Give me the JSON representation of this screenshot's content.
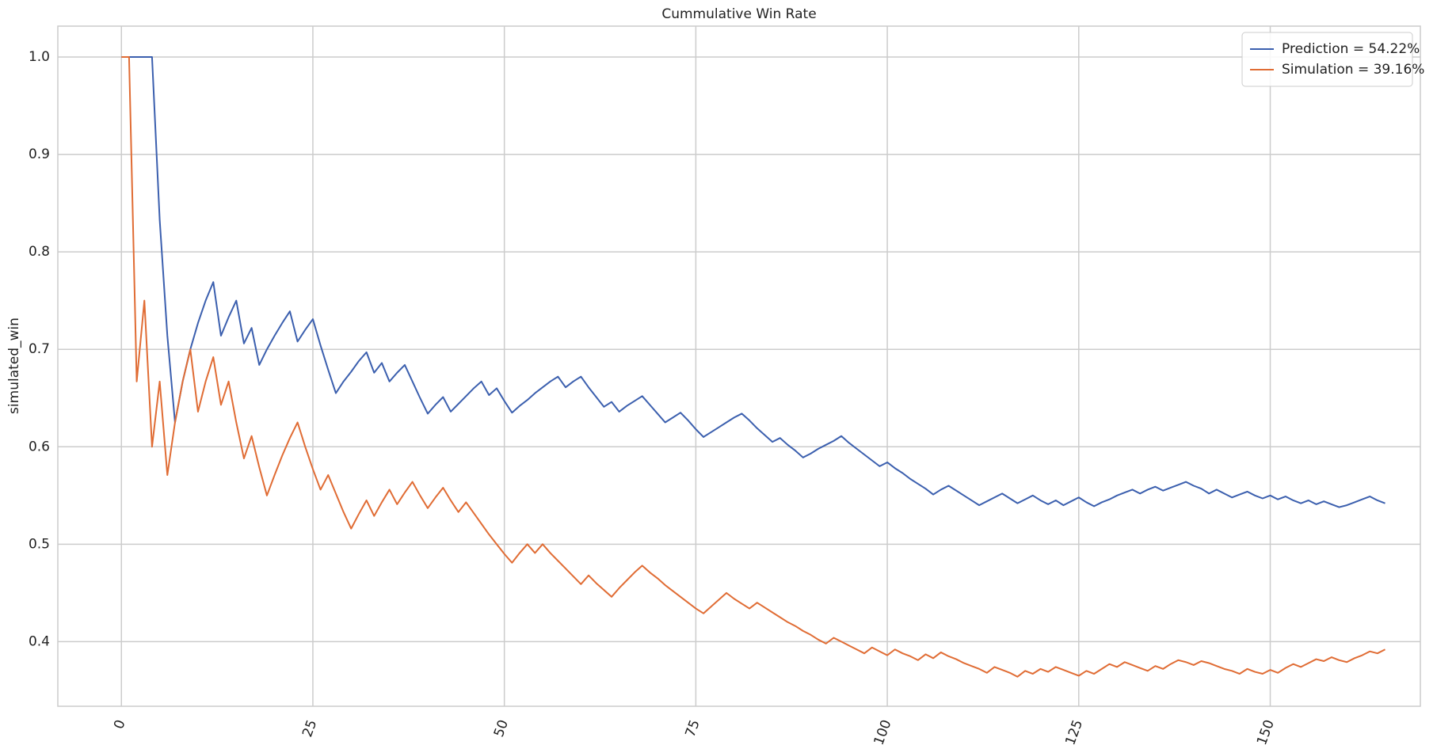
{
  "chart_data": {
    "type": "line",
    "title": "Cummulative Win Rate",
    "ylabel": "simulated_win",
    "x": [
      0,
      1,
      2,
      3,
      4,
      5,
      6,
      7,
      8,
      9,
      10,
      11,
      12,
      13,
      14,
      15,
      16,
      17,
      18,
      19,
      20,
      21,
      22,
      23,
      24,
      25,
      26,
      27,
      28,
      29,
      30,
      31,
      32,
      33,
      34,
      35,
      36,
      37,
      38,
      39,
      40,
      41,
      42,
      43,
      44,
      45,
      46,
      47,
      48,
      49,
      50,
      51,
      52,
      53,
      54,
      55,
      56,
      57,
      58,
      59,
      60,
      61,
      62,
      63,
      64,
      65,
      66,
      67,
      68,
      69,
      70,
      71,
      72,
      73,
      74,
      75,
      76,
      77,
      78,
      79,
      80,
      81,
      82,
      83,
      84,
      85,
      86,
      87,
      88,
      89,
      90,
      91,
      92,
      93,
      94,
      95,
      96,
      97,
      98,
      99,
      100,
      101,
      102,
      103,
      104,
      105,
      106,
      107,
      108,
      109,
      110,
      111,
      112,
      113,
      114,
      115,
      116,
      117,
      118,
      119,
      120,
      121,
      122,
      123,
      124,
      125,
      126,
      127,
      128,
      129,
      130,
      131,
      132,
      133,
      134,
      135,
      136,
      137,
      138,
      139,
      140,
      141,
      142,
      143,
      144,
      145,
      146,
      147,
      148,
      149,
      150,
      151,
      152,
      153,
      154,
      155,
      156,
      157,
      158,
      159,
      160,
      161,
      162,
      163,
      164,
      165
    ],
    "series": [
      {
        "name": "Prediction = 54.22%",
        "color": "#3b5fae",
        "values": [
          1,
          1,
          1,
          1,
          1,
          0.833,
          0.714,
          0.625,
          0.667,
          0.7,
          0.727,
          0.75,
          0.769,
          0.714,
          0.733,
          0.75,
          0.706,
          0.722,
          0.684,
          0.7,
          0.714,
          0.727,
          0.739,
          0.708,
          0.72,
          0.731,
          0.704,
          0.679,
          0.655,
          0.667,
          0.677,
          0.688,
          0.697,
          0.676,
          0.686,
          0.667,
          0.676,
          0.684,
          0.667,
          0.65,
          0.634,
          0.643,
          0.651,
          0.636,
          0.644,
          0.652,
          0.66,
          0.667,
          0.653,
          0.66,
          0.647,
          0.635,
          0.642,
          0.648,
          0.655,
          0.661,
          0.667,
          0.672,
          0.661,
          0.667,
          0.672,
          0.661,
          0.651,
          0.641,
          0.646,
          0.636,
          0.642,
          0.647,
          0.652,
          0.643,
          0.634,
          0.625,
          0.63,
          0.635,
          0.627,
          0.618,
          0.61,
          0.615,
          0.62,
          0.625,
          0.63,
          0.634,
          0.627,
          0.619,
          0.612,
          0.605,
          0.609,
          0.602,
          0.596,
          0.589,
          0.593,
          0.598,
          0.602,
          0.606,
          0.611,
          0.604,
          0.598,
          0.592,
          0.586,
          0.58,
          0.584,
          0.578,
          0.573,
          0.567,
          0.562,
          0.557,
          0.551,
          0.556,
          0.56,
          0.555,
          0.55,
          0.545,
          0.54,
          0.544,
          0.548,
          0.552,
          0.547,
          0.542,
          0.546,
          0.55,
          0.545,
          0.541,
          0.545,
          0.54,
          0.544,
          0.548,
          0.543,
          0.539,
          0.543,
          0.546,
          0.55,
          0.553,
          0.556,
          0.552,
          0.556,
          0.559,
          0.555,
          0.558,
          0.561,
          0.564,
          0.56,
          0.557,
          0.552,
          0.556,
          0.552,
          0.548,
          0.551,
          0.554,
          0.55,
          0.547,
          0.55,
          0.546,
          0.549,
          0.545,
          0.542,
          0.545,
          0.541,
          0.544,
          0.541,
          0.538,
          0.54,
          0.543,
          0.546,
          0.549,
          0.545,
          0.542
        ]
      },
      {
        "name": "Simulation = 39.16%",
        "color": "#e06c34",
        "values": [
          1,
          1,
          0.667,
          0.75,
          0.6,
          0.667,
          0.571,
          0.625,
          0.667,
          0.7,
          0.636,
          0.667,
          0.692,
          0.643,
          0.667,
          0.625,
          0.588,
          0.611,
          0.579,
          0.55,
          0.571,
          0.591,
          0.609,
          0.625,
          0.6,
          0.577,
          0.556,
          0.571,
          0.552,
          0.533,
          0.516,
          0.531,
          0.545,
          0.529,
          0.543,
          0.556,
          0.541,
          0.553,
          0.564,
          0.55,
          0.537,
          0.548,
          0.558,
          0.545,
          0.533,
          0.543,
          0.532,
          0.521,
          0.51,
          0.5,
          0.49,
          0.481,
          0.491,
          0.5,
          0.491,
          0.5,
          0.491,
          0.483,
          0.475,
          0.467,
          0.459,
          0.468,
          0.46,
          0.453,
          0.446,
          0.455,
          0.463,
          0.471,
          0.478,
          0.471,
          0.465,
          0.458,
          0.452,
          0.446,
          0.44,
          0.434,
          0.429,
          0.436,
          0.443,
          0.45,
          0.444,
          0.439,
          0.434,
          0.44,
          0.435,
          0.43,
          0.425,
          0.42,
          0.416,
          0.411,
          0.407,
          0.402,
          0.398,
          0.404,
          0.4,
          0.396,
          0.392,
          0.388,
          0.394,
          0.39,
          0.386,
          0.392,
          0.388,
          0.385,
          0.381,
          0.387,
          0.383,
          0.389,
          0.385,
          0.382,
          0.378,
          0.375,
          0.372,
          0.368,
          0.374,
          0.371,
          0.368,
          0.364,
          0.37,
          0.367,
          0.372,
          0.369,
          0.374,
          0.371,
          0.368,
          0.365,
          0.37,
          0.367,
          0.372,
          0.377,
          0.374,
          0.379,
          0.376,
          0.373,
          0.37,
          0.375,
          0.372,
          0.377,
          0.381,
          0.379,
          0.376,
          0.38,
          0.378,
          0.375,
          0.372,
          0.37,
          0.367,
          0.372,
          0.369,
          0.367,
          0.371,
          0.368,
          0.373,
          0.377,
          0.374,
          0.378,
          0.382,
          0.38,
          0.384,
          0.381,
          0.379,
          0.383,
          0.386,
          0.39,
          0.388,
          0.392
        ]
      }
    ],
    "xlim": [
      -8.3,
      169.6
    ],
    "xticks": [
      0,
      25,
      50,
      75,
      100,
      125,
      150
    ],
    "ylim": [
      0.3337,
      1.0317
    ],
    "yticks": [
      0.4,
      0.5,
      0.6,
      0.7,
      0.8,
      0.9,
      {
        "value": 1,
        "label": "1.0"
      }
    ],
    "grid": true,
    "legend": "upper right"
  }
}
